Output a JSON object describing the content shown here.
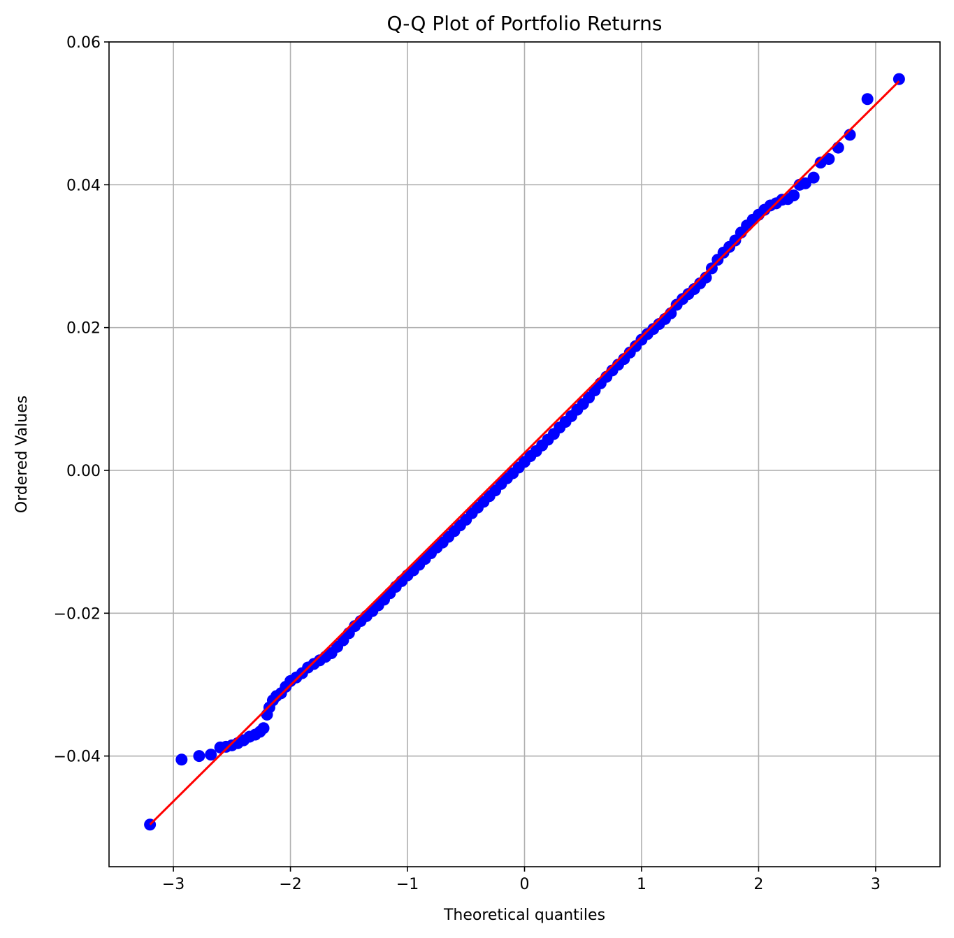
{
  "chart_data": {
    "type": "scatter",
    "title": "Q-Q Plot of Portfolio Returns",
    "xlabel": "Theoretical quantiles",
    "ylabel": "Ordered Values",
    "xlim": [
      -3.55,
      3.55
    ],
    "ylim": [
      -0.0555,
      0.06
    ],
    "grid": true,
    "x_ticks": [
      -3,
      -2,
      -1,
      0,
      1,
      2,
      3
    ],
    "x_tick_labels": [
      "−3",
      "−2",
      "−1",
      "0",
      "1",
      "2",
      "3"
    ],
    "y_ticks": [
      -0.04,
      -0.02,
      0.0,
      0.02,
      0.04,
      0.06
    ],
    "y_tick_labels": [
      "−0.04",
      "−0.02",
      "0.00",
      "0.02",
      "0.04",
      "0.06"
    ],
    "series": [
      {
        "kind": "points",
        "color": "#0000ff",
        "points": [
          [
            -3.2,
            -0.0496
          ],
          [
            -2.93,
            -0.0405
          ],
          [
            -2.78,
            -0.04
          ],
          [
            -2.68,
            -0.0398
          ],
          [
            -2.6,
            -0.0388
          ],
          [
            -2.55,
            -0.0387
          ],
          [
            -2.5,
            -0.0385
          ],
          [
            -2.45,
            -0.0382
          ],
          [
            -2.4,
            -0.0378
          ],
          [
            -2.35,
            -0.0373
          ],
          [
            -2.3,
            -0.037
          ],
          [
            -2.26,
            -0.0366
          ],
          [
            -2.23,
            -0.0361
          ],
          [
            -2.2,
            -0.0342
          ],
          [
            -2.18,
            -0.0332
          ],
          [
            -2.15,
            -0.0322
          ],
          [
            -2.12,
            -0.0316
          ],
          [
            -2.08,
            -0.0312
          ],
          [
            -2.04,
            -0.0303
          ],
          [
            -2.0,
            -0.0295
          ],
          [
            -1.95,
            -0.029
          ],
          [
            -1.9,
            -0.0284
          ],
          [
            -1.85,
            -0.0276
          ],
          [
            -1.8,
            -0.0271
          ],
          [
            -1.75,
            -0.0266
          ],
          [
            -1.7,
            -0.0261
          ],
          [
            -1.65,
            -0.0256
          ],
          [
            -1.6,
            -0.0247
          ],
          [
            -1.55,
            -0.0238
          ],
          [
            -1.5,
            -0.0228
          ],
          [
            -1.45,
            -0.0218
          ],
          [
            -1.4,
            -0.0211
          ],
          [
            -1.35,
            -0.0204
          ],
          [
            -1.3,
            -0.0197
          ],
          [
            -1.25,
            -0.0189
          ],
          [
            -1.2,
            -0.0181
          ],
          [
            -1.15,
            -0.0172
          ],
          [
            -1.1,
            -0.0163
          ],
          [
            -1.05,
            -0.0155
          ],
          [
            -1.0,
            -0.0147
          ],
          [
            -0.95,
            -0.014
          ],
          [
            -0.9,
            -0.0132
          ],
          [
            -0.85,
            -0.0124
          ],
          [
            -0.8,
            -0.0116
          ],
          [
            -0.75,
            -0.0108
          ],
          [
            -0.7,
            -0.0101
          ],
          [
            -0.65,
            -0.0093
          ],
          [
            -0.6,
            -0.0085
          ],
          [
            -0.55,
            -0.0077
          ],
          [
            -0.5,
            -0.0069
          ],
          [
            -0.45,
            -0.006
          ],
          [
            -0.4,
            -0.0052
          ],
          [
            -0.35,
            -0.0044
          ],
          [
            -0.3,
            -0.0036
          ],
          [
            -0.25,
            -0.0028
          ],
          [
            -0.2,
            -0.0019
          ],
          [
            -0.15,
            -0.0011
          ],
          [
            -0.1,
            -0.0004
          ],
          [
            -0.05,
            0.0004
          ],
          [
            0.0,
            0.0012
          ],
          [
            0.05,
            0.002
          ],
          [
            0.1,
            0.0027
          ],
          [
            0.15,
            0.0035
          ],
          [
            0.2,
            0.0043
          ],
          [
            0.25,
            0.0051
          ],
          [
            0.3,
            0.006
          ],
          [
            0.35,
            0.0068
          ],
          [
            0.4,
            0.0076
          ],
          [
            0.45,
            0.0085
          ],
          [
            0.5,
            0.0093
          ],
          [
            0.55,
            0.0102
          ],
          [
            0.6,
            0.0112
          ],
          [
            0.65,
            0.0122
          ],
          [
            0.7,
            0.0131
          ],
          [
            0.75,
            0.014
          ],
          [
            0.8,
            0.0148
          ],
          [
            0.85,
            0.0156
          ],
          [
            0.9,
            0.0165
          ],
          [
            0.95,
            0.0174
          ],
          [
            1.0,
            0.0183
          ],
          [
            1.05,
            0.0191
          ],
          [
            1.1,
            0.0198
          ],
          [
            1.15,
            0.0205
          ],
          [
            1.2,
            0.0212
          ],
          [
            1.25,
            0.022
          ],
          [
            1.3,
            0.0232
          ],
          [
            1.35,
            0.024
          ],
          [
            1.4,
            0.0247
          ],
          [
            1.45,
            0.0254
          ],
          [
            1.5,
            0.0262
          ],
          [
            1.55,
            0.027
          ],
          [
            1.6,
            0.0283
          ],
          [
            1.65,
            0.0295
          ],
          [
            1.7,
            0.0305
          ],
          [
            1.75,
            0.0313
          ],
          [
            1.8,
            0.0322
          ],
          [
            1.85,
            0.0333
          ],
          [
            1.9,
            0.0343
          ],
          [
            1.95,
            0.0351
          ],
          [
            2.0,
            0.0358
          ],
          [
            2.05,
            0.0365
          ],
          [
            2.1,
            0.0371
          ],
          [
            2.15,
            0.0374
          ],
          [
            2.2,
            0.0379
          ],
          [
            2.25,
            0.038
          ],
          [
            2.3,
            0.0385
          ],
          [
            2.35,
            0.04
          ],
          [
            2.4,
            0.0402
          ],
          [
            2.47,
            0.041
          ],
          [
            2.53,
            0.0431
          ],
          [
            2.6,
            0.0436
          ],
          [
            2.68,
            0.0452
          ],
          [
            2.78,
            0.047
          ],
          [
            2.93,
            0.052
          ],
          [
            3.2,
            0.0548
          ]
        ]
      },
      {
        "kind": "fit-line",
        "color": "#ff0000",
        "points": [
          [
            -3.2,
            -0.0496
          ],
          [
            3.2,
            0.0545
          ]
        ]
      }
    ]
  }
}
